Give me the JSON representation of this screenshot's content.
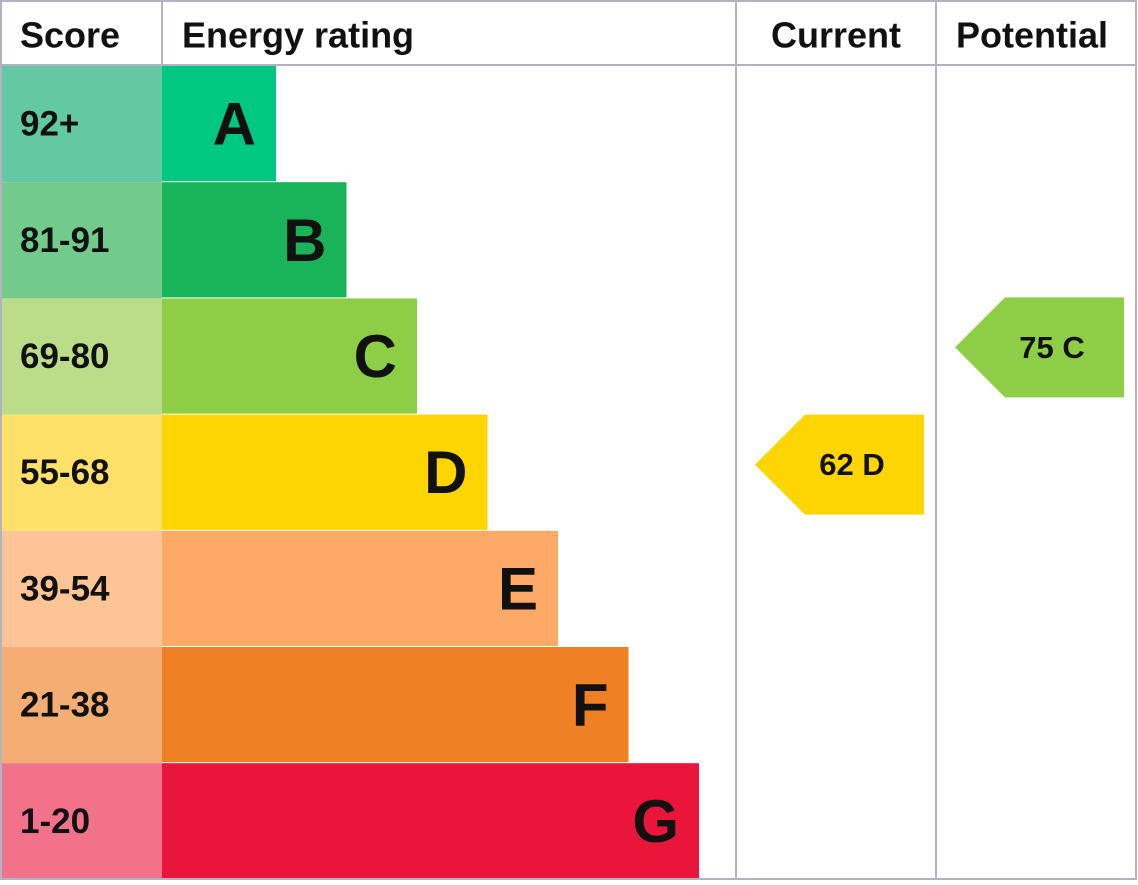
{
  "header": {
    "score": "Score",
    "rating": "Energy rating",
    "current": "Current",
    "potential": "Potential"
  },
  "bands": [
    {
      "range": "92+",
      "rating": "A",
      "score_color": "#63c8a4",
      "color": "#00c781"
    },
    {
      "range": "81-91",
      "rating": "B",
      "score_color": "#72cb8d",
      "color": "#19b459"
    },
    {
      "range": "69-80",
      "rating": "C",
      "score_color": "#bbdd8a",
      "color": "#8dce46"
    },
    {
      "range": "55-68",
      "rating": "D",
      "score_color": "#ffe169",
      "color": "#ffd500"
    },
    {
      "range": "39-54",
      "rating": "E",
      "score_color": "#fdc596",
      "color": "#fcaa65"
    },
    {
      "range": "21-38",
      "rating": "F",
      "score_color": "#f4ad72",
      "color": "#ef8023"
    },
    {
      "range": "1-20",
      "rating": "G",
      "score_color": "#f27289",
      "color": "#e9153b"
    }
  ],
  "current": {
    "value": 62,
    "label": "62 D"
  },
  "potential": {
    "value": 75,
    "label": "75 C"
  }
}
